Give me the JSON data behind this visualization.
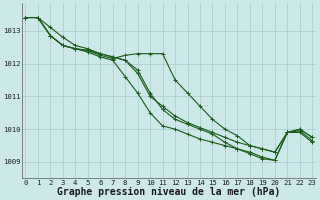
{
  "title": "Graphe pression niveau de la mer (hPa)",
  "bg_color": "#cce8e8",
  "grid_color": "#aacccc",
  "line_color": "#1a5c1a",
  "x_values": [
    0,
    1,
    2,
    3,
    4,
    5,
    6,
    7,
    8,
    9,
    10,
    11,
    12,
    13,
    14,
    15,
    16,
    17,
    18,
    19,
    20,
    21,
    22,
    23
  ],
  "series": [
    [
      1013.4,
      1013.4,
      1013.1,
      1012.8,
      1012.55,
      1012.45,
      1012.3,
      1012.2,
      1012.1,
      1011.7,
      1011.0,
      1010.7,
      1010.4,
      1010.2,
      1010.05,
      1009.9,
      1009.75,
      1009.6,
      1009.5,
      1009.4,
      1009.3,
      1009.9,
      1010.0,
      1009.75
    ],
    [
      1013.4,
      1013.4,
      1012.85,
      1012.55,
      1012.45,
      1012.35,
      1012.2,
      1012.1,
      1011.6,
      1011.1,
      1010.5,
      1010.1,
      1010.0,
      1009.85,
      1009.7,
      1009.6,
      1009.5,
      1009.4,
      1009.3,
      1009.15,
      1009.05,
      1009.9,
      1010.0,
      1009.75
    ],
    [
      1013.4,
      1013.4,
      1012.85,
      1012.55,
      1012.45,
      1012.4,
      1012.25,
      1012.15,
      1012.25,
      1012.3,
      1012.3,
      1012.3,
      1011.5,
      1011.1,
      1010.7,
      1010.3,
      1010.0,
      1009.8,
      1009.5,
      1009.4,
      1009.3,
      1009.9,
      1009.9,
      1009.6
    ],
    [
      1013.4,
      1013.4,
      1012.85,
      1012.55,
      1012.45,
      1012.4,
      1012.3,
      1012.2,
      1012.1,
      1011.8,
      1011.1,
      1010.6,
      1010.3,
      1010.15,
      1010.0,
      1009.85,
      1009.6,
      1009.4,
      1009.25,
      1009.1,
      1009.05,
      1009.9,
      1009.95,
      1009.65
    ]
  ],
  "ylim": [
    1008.5,
    1013.85
  ],
  "yticks": [
    1009,
    1010,
    1011,
    1012,
    1013
  ],
  "xticks": [
    0,
    1,
    2,
    3,
    4,
    5,
    6,
    7,
    8,
    9,
    10,
    11,
    12,
    13,
    14,
    15,
    16,
    17,
    18,
    19,
    20,
    21,
    22,
    23
  ],
  "title_fontsize": 7.0,
  "tick_fontsize": 5.2,
  "figsize": [
    3.2,
    2.0
  ],
  "dpi": 100
}
